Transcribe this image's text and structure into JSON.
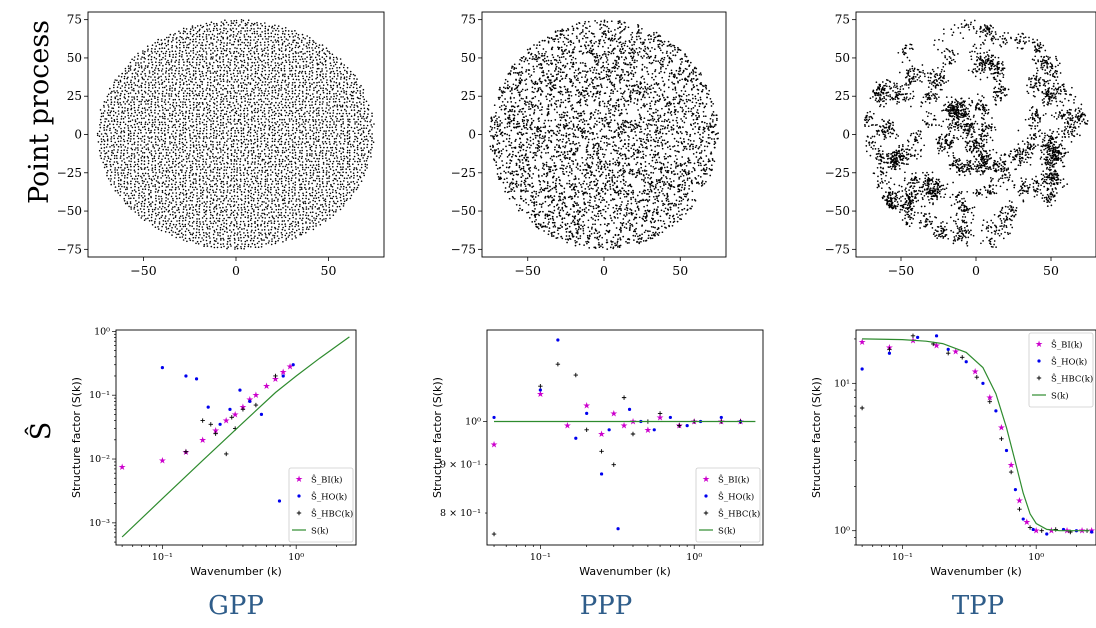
{
  "row_labels": {
    "top": "Point process",
    "bottom": "Ŝ"
  },
  "column_labels": [
    "GPP",
    "PPP",
    "TPP"
  ],
  "colors": {
    "column_label": "#2f5d8a",
    "points": "#000000",
    "bi": "#cc00cc",
    "ho": "#0000ee",
    "hbc": "#000000",
    "model": "#2e8b2e"
  },
  "point_panels": [
    {
      "kind": "gpp",
      "x_ticks": [
        "−50",
        "0",
        "50"
      ],
      "y_ticks": [
        "75",
        "50",
        "25",
        "0",
        "−25",
        "−50",
        "−75"
      ]
    },
    {
      "kind": "ppp",
      "x_ticks": [
        "−50",
        "0",
        "50"
      ],
      "y_ticks": [
        "75",
        "50",
        "25",
        "0",
        "−25",
        "−50",
        "−75"
      ]
    },
    {
      "kind": "tpp",
      "x_ticks": [
        "−50",
        "0",
        "50"
      ],
      "y_ticks": [
        "75",
        "50",
        "25",
        "0",
        "−25",
        "−50",
        "−75"
      ]
    }
  ],
  "sf_axes": {
    "xlabel": "Wavenumber (k)",
    "ylabel": "Structure factor (S(k))"
  },
  "legend_labels": [
    "Ŝ_BI(k)",
    "Ŝ_HO(k)",
    "Ŝ_HBC(k)",
    "S(k)"
  ],
  "chart_data": [
    {
      "type": "scatter",
      "title": "GPP",
      "xlabel": "Wavenumber (k)",
      "ylabel": "Structure factor (S(k))",
      "x_scale": "log",
      "y_scale": "log",
      "xlim": [
        0.045,
        2.8
      ],
      "ylim": [
        0.00045,
        1.05
      ],
      "x_ticks": [
        {
          "v": 0.1,
          "label": "10⁻¹"
        },
        {
          "v": 1,
          "label": "10⁰"
        }
      ],
      "y_ticks": [
        {
          "v": 0.001,
          "label": "10⁻³"
        },
        {
          "v": 0.01,
          "label": "10⁻²"
        },
        {
          "v": 0.1,
          "label": "10⁻¹"
        },
        {
          "v": 1,
          "label": "10⁰"
        }
      ],
      "legend_position": "lower-right",
      "series": [
        {
          "name": "Ŝ_BI(k)",
          "marker": "star",
          "color": "#cc00cc",
          "x": [
            0.05,
            0.1,
            0.15,
            0.2,
            0.25,
            0.3,
            0.35,
            0.4,
            0.45,
            0.5,
            0.6,
            0.7,
            0.8,
            0.9
          ],
          "y": [
            0.0075,
            0.0095,
            0.013,
            0.02,
            0.028,
            0.04,
            0.05,
            0.065,
            0.085,
            0.1,
            0.14,
            0.18,
            0.23,
            0.28
          ]
        },
        {
          "name": "Ŝ_HO(k)",
          "marker": "dot",
          "color": "#0000ee",
          "x": [
            0.1,
            0.15,
            0.18,
            0.22,
            0.27,
            0.32,
            0.38,
            0.45,
            0.55,
            0.75,
            0.8,
            0.95
          ],
          "y": [
            0.27,
            0.2,
            0.18,
            0.065,
            0.035,
            0.06,
            0.12,
            0.08,
            0.05,
            0.0022,
            0.2,
            0.3
          ]
        },
        {
          "name": "Ŝ_HBC(k)",
          "marker": "plus",
          "color": "#000000",
          "x": [
            0.15,
            0.2,
            0.23,
            0.25,
            0.3,
            0.33,
            0.35,
            0.4,
            0.5,
            0.7
          ],
          "y": [
            0.013,
            0.04,
            0.035,
            0.025,
            0.012,
            0.045,
            0.03,
            0.06,
            0.07,
            0.2
          ]
        },
        {
          "name": "S(k)",
          "marker": "line",
          "color": "#2e8b2e",
          "x": [
            0.05,
            0.1,
            0.2,
            0.4,
            0.7,
            1,
            1.5,
            2.5
          ],
          "y": [
            0.0006,
            0.0024,
            0.0095,
            0.037,
            0.11,
            0.2,
            0.38,
            0.82
          ]
        }
      ]
    },
    {
      "type": "scatter",
      "title": "PPP",
      "xlabel": "Wavenumber (k)",
      "ylabel": "Structure factor (S(k))",
      "x_scale": "log",
      "y_scale": "log",
      "xlim": [
        0.045,
        2.8
      ],
      "ylim": [
        0.74,
        1.25
      ],
      "x_ticks": [
        {
          "v": 0.1,
          "label": "10⁻¹"
        },
        {
          "v": 1,
          "label": "10⁰"
        }
      ],
      "y_ticks": [
        {
          "v": 0.8,
          "label": "8 × 10⁻¹"
        },
        {
          "v": 0.9,
          "label": "9 × 10⁻¹"
        },
        {
          "v": 1,
          "label": "10⁰"
        }
      ],
      "legend_position": "lower-right",
      "series": [
        {
          "name": "Ŝ_BI(k)",
          "marker": "star",
          "color": "#cc00cc",
          "x": [
            0.05,
            0.1,
            0.15,
            0.2,
            0.25,
            0.3,
            0.35,
            0.4,
            0.5,
            0.6,
            0.8,
            1.0,
            1.5,
            2.0
          ],
          "y": [
            0.945,
            1.07,
            0.99,
            1.04,
            0.97,
            1.02,
            0.99,
            1.0,
            0.98,
            1.01,
            0.99,
            1.0,
            1.0,
            1.0
          ]
        },
        {
          "name": "Ŝ_HO(k)",
          "marker": "dot",
          "color": "#0000ee",
          "x": [
            0.05,
            0.1,
            0.13,
            0.17,
            0.2,
            0.25,
            0.28,
            0.32,
            0.38,
            0.45,
            0.55,
            0.7,
            0.9,
            1.1,
            1.5,
            2.0
          ],
          "y": [
            1.01,
            1.08,
            1.22,
            0.96,
            1.02,
            0.88,
            0.98,
            0.77,
            1.03,
            1.0,
            0.98,
            1.01,
            0.99,
            1.0,
            1.01,
            1.0
          ]
        },
        {
          "name": "Ŝ_HBC(k)",
          "marker": "plus",
          "color": "#000000",
          "x": [
            0.05,
            0.1,
            0.13,
            0.17,
            0.2,
            0.25,
            0.3,
            0.35,
            0.4,
            0.5,
            0.6,
            0.8,
            1.0,
            1.5,
            2.0
          ],
          "y": [
            0.76,
            1.09,
            1.15,
            1.12,
            0.98,
            0.93,
            0.9,
            1.06,
            0.97,
            1.0,
            1.02,
            0.99,
            1.0,
            1.0,
            1.0
          ]
        },
        {
          "name": "S(k)",
          "marker": "line",
          "color": "#2e8b2e",
          "x": [
            0.05,
            2.5
          ],
          "y": [
            1.0,
            1.0
          ]
        }
      ]
    },
    {
      "type": "scatter",
      "title": "TPP",
      "xlabel": "Wavenumber (k)",
      "ylabel": "Structure factor (S(k))",
      "x_scale": "log",
      "y_scale": "log",
      "xlim": [
        0.045,
        2.8
      ],
      "ylim": [
        0.8,
        23
      ],
      "x_ticks": [
        {
          "v": 0.1,
          "label": "10⁻¹"
        },
        {
          "v": 1,
          "label": "10⁰"
        }
      ],
      "y_ticks": [
        {
          "v": 1,
          "label": "10⁰"
        },
        {
          "v": 10,
          "label": "10¹"
        }
      ],
      "legend_position": "upper-right",
      "series": [
        {
          "name": "Ŝ_BI(k)",
          "marker": "star",
          "color": "#cc00cc",
          "x": [
            0.05,
            0.08,
            0.12,
            0.18,
            0.25,
            0.35,
            0.45,
            0.55,
            0.65,
            0.75,
            0.85,
            1.0,
            1.3,
            1.7,
            2.2,
            2.6
          ],
          "y": [
            19,
            17.5,
            19.5,
            18,
            16.5,
            12,
            8,
            5,
            2.8,
            1.6,
            1.15,
            1.0,
            1.0,
            1.0,
            1.0,
            1.0
          ]
        },
        {
          "name": "Ŝ_HO(k)",
          "marker": "dot",
          "color": "#0000ee",
          "x": [
            0.05,
            0.08,
            0.13,
            0.18,
            0.22,
            0.3,
            0.4,
            0.5,
            0.6,
            0.7,
            0.8,
            0.95,
            1.2,
            1.6,
            2.0,
            2.6
          ],
          "y": [
            12.5,
            16,
            20.5,
            21,
            17,
            14,
            10,
            6.5,
            3.5,
            1.9,
            1.2,
            1.02,
            0.95,
            1.02,
            1.0,
            0.98
          ]
        },
        {
          "name": "Ŝ_HBC(k)",
          "marker": "plus",
          "color": "#000000",
          "x": [
            0.05,
            0.08,
            0.12,
            0.17,
            0.22,
            0.28,
            0.36,
            0.45,
            0.55,
            0.65,
            0.75,
            0.9,
            1.1,
            1.4,
            1.8,
            2.4
          ],
          "y": [
            6.8,
            17,
            21,
            18.5,
            16,
            15,
            11,
            7.5,
            4.2,
            2.5,
            1.4,
            1.05,
            1.0,
            1.02,
            0.98,
            1.0
          ]
        },
        {
          "name": "S(k)",
          "marker": "line",
          "color": "#2e8b2e",
          "x": [
            0.05,
            0.1,
            0.15,
            0.2,
            0.3,
            0.4,
            0.5,
            0.6,
            0.7,
            0.8,
            0.9,
            1.0,
            1.2,
            1.5,
            2.0,
            2.5
          ],
          "y": [
            20,
            19.8,
            19.3,
            18.6,
            16.2,
            12.8,
            8.5,
            5.0,
            2.9,
            1.8,
            1.3,
            1.12,
            1.02,
            1.0,
            1.0,
            1.0
          ]
        }
      ]
    }
  ]
}
